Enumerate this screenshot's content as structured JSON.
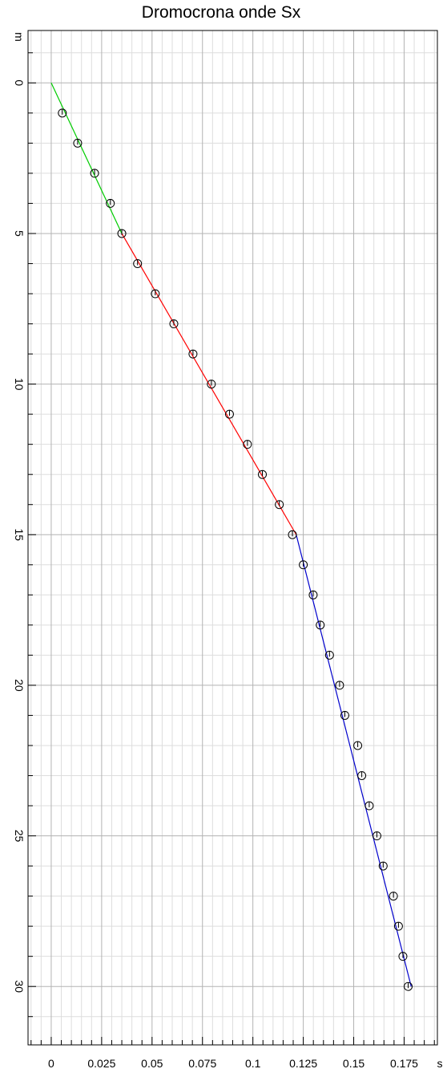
{
  "chart_data": {
    "type": "scatter",
    "title": "Dromocrona onde Sx",
    "x_unit": "s",
    "y_unit": "m",
    "xlim": [
      -0.0115,
      0.1915
    ],
    "ylim": [
      31.94,
      -1.74
    ],
    "y_inverted": true,
    "x_ticks": [
      0,
      0.025,
      0.05,
      0.075,
      0.1,
      0.125,
      0.15,
      0.175
    ],
    "x_tick_labels": [
      "0",
      "0.025",
      "0.05",
      "0.075",
      "0.1",
      "0.125",
      "0.15",
      "0.175"
    ],
    "y_ticks": [
      0,
      5,
      10,
      15,
      20,
      25,
      30
    ],
    "y_tick_labels": [
      "0",
      "5",
      "10",
      "15",
      "20",
      "25",
      "30"
    ],
    "grid": true,
    "x_minor_step": 0.005,
    "y_minor_step": 1,
    "x_major_grid_step": 0.025,
    "y_major_grid_step": 5,
    "points": [
      {
        "x": 0.0055,
        "y": 1
      },
      {
        "x": 0.0131,
        "y": 2
      },
      {
        "x": 0.0215,
        "y": 3
      },
      {
        "x": 0.0293,
        "y": 4
      },
      {
        "x": 0.035,
        "y": 5
      },
      {
        "x": 0.0428,
        "y": 6
      },
      {
        "x": 0.0516,
        "y": 7
      },
      {
        "x": 0.0608,
        "y": 8
      },
      {
        "x": 0.0703,
        "y": 9
      },
      {
        "x": 0.0794,
        "y": 10
      },
      {
        "x": 0.0884,
        "y": 11
      },
      {
        "x": 0.0973,
        "y": 12
      },
      {
        "x": 0.1047,
        "y": 13
      },
      {
        "x": 0.1131,
        "y": 14
      },
      {
        "x": 0.1196,
        "y": 15
      },
      {
        "x": 0.125,
        "y": 16
      },
      {
        "x": 0.1299,
        "y": 17
      },
      {
        "x": 0.1334,
        "y": 18
      },
      {
        "x": 0.138,
        "y": 19
      },
      {
        "x": 0.143,
        "y": 20
      },
      {
        "x": 0.1456,
        "y": 21
      },
      {
        "x": 0.152,
        "y": 22
      },
      {
        "x": 0.154,
        "y": 23
      },
      {
        "x": 0.1577,
        "y": 24
      },
      {
        "x": 0.1615,
        "y": 25
      },
      {
        "x": 0.1646,
        "y": 26
      },
      {
        "x": 0.1697,
        "y": 27
      },
      {
        "x": 0.1722,
        "y": 28
      },
      {
        "x": 0.1744,
        "y": 29
      },
      {
        "x": 0.177,
        "y": 30
      }
    ],
    "segments": [
      {
        "color": "#00cc00",
        "x": [
          0,
          0.035
        ],
        "y": [
          0,
          5
        ]
      },
      {
        "color": "#ff0000",
        "x": [
          0.035,
          0.1215
        ],
        "y": [
          5,
          15
        ]
      },
      {
        "color": "#0000cc",
        "x": [
          0.1215,
          0.1785
        ],
        "y": [
          15,
          30
        ]
      }
    ],
    "marker_style": "open-circle-with-tick",
    "colors": {
      "marker": "#000000",
      "major_grid": "#b3b3b3",
      "minor_grid": "#dddddd",
      "axis": "#000000"
    }
  }
}
